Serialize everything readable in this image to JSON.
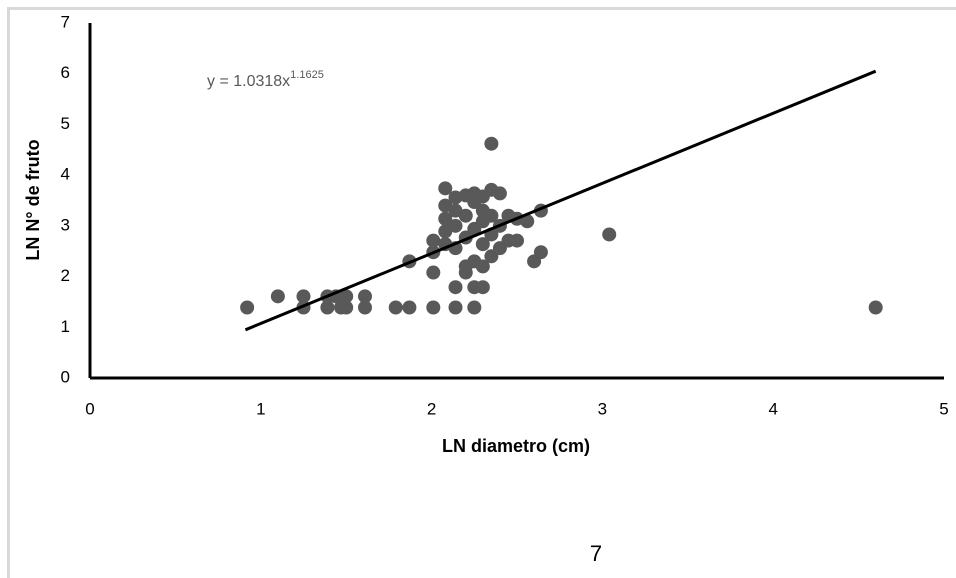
{
  "chart_data": {
    "type": "scatter",
    "x_label": "LN diametro (cm)",
    "y_label": "LN N° de fruto",
    "annotation": {
      "text": "y = 1.0318x",
      "superscript": "1.1625"
    },
    "page_number": "7",
    "xlim": [
      0,
      5
    ],
    "xticks": [
      0,
      1,
      2,
      3,
      4,
      5
    ],
    "ylim": [
      0,
      7
    ],
    "yticks": [
      0,
      1,
      2,
      3,
      4,
      5,
      6,
      7
    ],
    "grid": false,
    "series": [
      {
        "color": "#595959",
        "x": [
          0.92,
          1.1,
          1.25,
          1.25,
          1.39,
          1.39,
          1.44,
          1.47,
          1.5,
          1.5,
          1.61,
          1.61,
          1.79,
          1.87,
          1.87,
          2.01,
          2.01,
          2.01,
          2.01,
          2.08,
          2.08,
          2.08,
          2.08,
          2.08,
          2.14,
          2.14,
          2.14,
          2.14,
          2.14,
          2.14,
          2.2,
          2.2,
          2.2,
          2.2,
          2.2,
          2.25,
          2.25,
          2.25,
          2.25,
          2.25,
          2.25,
          2.3,
          2.3,
          2.3,
          2.3,
          2.3,
          2.3,
          2.35,
          2.35,
          2.35,
          2.35,
          2.35,
          2.4,
          2.4,
          2.4,
          2.45,
          2.45,
          2.5,
          2.5,
          2.56,
          2.6,
          2.64,
          2.64,
          3.04,
          4.6
        ],
        "values": [
          1.39,
          1.61,
          1.61,
          1.39,
          1.39,
          1.61,
          1.61,
          1.39,
          1.61,
          1.39,
          1.39,
          1.61,
          1.39,
          1.39,
          2.3,
          1.39,
          2.08,
          2.48,
          2.71,
          2.64,
          2.89,
          3.14,
          3.4,
          3.74,
          1.39,
          1.79,
          2.56,
          3.0,
          3.3,
          3.56,
          2.08,
          2.2,
          2.77,
          3.2,
          3.6,
          1.39,
          1.79,
          2.3,
          2.94,
          3.47,
          3.64,
          1.79,
          2.2,
          2.64,
          3.09,
          3.3,
          3.58,
          2.4,
          2.83,
          3.2,
          3.71,
          4.62,
          2.56,
          3.0,
          3.64,
          2.71,
          3.2,
          2.71,
          3.14,
          3.09,
          2.3,
          2.48,
          3.3,
          2.83,
          1.39
        ]
      }
    ],
    "trendline": {
      "color": "#000000",
      "x": [
        0.91,
        4.6
      ],
      "values": [
        0.95,
        6.05
      ]
    }
  }
}
